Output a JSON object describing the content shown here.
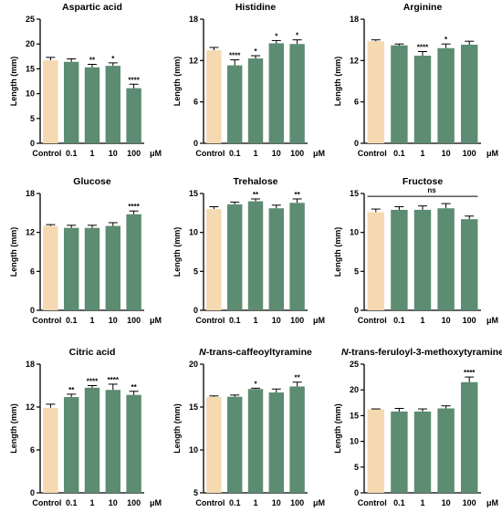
{
  "colors": {
    "control": "#F5D9B0",
    "treatment": "#5C8C71",
    "axis": "#000000"
  },
  "chart_data": [
    {
      "type": "bar",
      "title": "Aspartic acid",
      "ylabel": "Length (mm)",
      "ylim": [
        0,
        25
      ],
      "yticks": [
        "0",
        "5",
        "10",
        "15",
        "20",
        "25"
      ],
      "categories": [
        "Control",
        "0.1",
        "1",
        "10",
        "100"
      ],
      "unit_label": "μM",
      "values": [
        16.7,
        16.4,
        15.3,
        15.6,
        11.1
      ],
      "errors": [
        0.6,
        0.6,
        0.6,
        0.6,
        0.8
      ],
      "significance": [
        "",
        "",
        "**",
        "*",
        "****"
      ]
    },
    {
      "type": "bar",
      "title": "Histidine",
      "ylabel": "Length (mm)",
      "ylim": [
        0,
        18
      ],
      "yticks": [
        "0",
        "6",
        "12",
        "18"
      ],
      "categories": [
        "Control",
        "0.1",
        "1",
        "10",
        "100"
      ],
      "unit_label": "μM",
      "values": [
        13.5,
        11.3,
        12.3,
        14.5,
        14.4
      ],
      "errors": [
        0.4,
        0.8,
        0.4,
        0.4,
        0.6
      ],
      "significance": [
        "",
        "****",
        "*",
        "*",
        "*"
      ]
    },
    {
      "type": "bar",
      "title": "Arginine",
      "ylabel": "Length (mm)",
      "ylim": [
        0,
        18
      ],
      "yticks": [
        "0",
        "6",
        "12",
        "18"
      ],
      "categories": [
        "Control",
        "0.1",
        "1",
        "10",
        "100"
      ],
      "unit_label": "μM",
      "values": [
        14.8,
        14.2,
        12.7,
        13.8,
        14.3
      ],
      "errors": [
        0.2,
        0.2,
        0.6,
        0.6,
        0.5
      ],
      "significance": [
        "",
        "",
        "****",
        "*",
        ""
      ]
    },
    {
      "type": "bar",
      "title": "Glucose",
      "ylabel": "Length (mm)",
      "ylim": [
        0,
        18
      ],
      "yticks": [
        "0",
        "6",
        "12",
        "18"
      ],
      "categories": [
        "Control",
        "0.1",
        "1",
        "10",
        "100"
      ],
      "unit_label": "μM",
      "values": [
        13.0,
        12.7,
        12.7,
        13.0,
        14.8
      ],
      "errors": [
        0.2,
        0.4,
        0.4,
        0.5,
        0.5
      ],
      "significance": [
        "",
        "",
        "",
        "",
        "****"
      ]
    },
    {
      "type": "bar",
      "title": "Trehalose",
      "ylabel": "Length (mm)",
      "ylim": [
        0,
        15
      ],
      "yticks": [
        "0",
        "5",
        "10",
        "15"
      ],
      "categories": [
        "Control",
        "0.1",
        "1",
        "10",
        "100"
      ],
      "unit_label": "μM",
      "values": [
        13.0,
        13.6,
        14.0,
        13.1,
        13.8
      ],
      "errors": [
        0.3,
        0.3,
        0.3,
        0.4,
        0.5
      ],
      "significance": [
        "",
        "",
        "**",
        "",
        "**"
      ]
    },
    {
      "type": "bar",
      "title": "Fructose",
      "ylabel": "Length (mm)",
      "ylim": [
        0,
        15
      ],
      "yticks": [
        "0",
        "5",
        "10",
        "15"
      ],
      "categories": [
        "Control",
        "0.1",
        "1",
        "10",
        "100"
      ],
      "unit_label": "μM",
      "values": [
        12.6,
        12.9,
        12.9,
        13.1,
        11.7
      ],
      "errors": [
        0.4,
        0.4,
        0.5,
        0.6,
        0.4
      ],
      "significance": [
        "",
        "",
        "",
        "",
        ""
      ],
      "group_annotation": "ns"
    },
    {
      "type": "bar",
      "title": "Citric acid",
      "ylabel": "Length (mm)",
      "ylim": [
        0,
        18
      ],
      "yticks": [
        "0",
        "6",
        "12",
        "18"
      ],
      "categories": [
        "Control",
        "0.1",
        "1",
        "10",
        "100"
      ],
      "unit_label": "μM",
      "values": [
        11.9,
        13.4,
        14.7,
        14.4,
        13.7
      ],
      "errors": [
        0.5,
        0.4,
        0.3,
        0.8,
        0.5
      ],
      "significance": [
        "",
        "**",
        "****",
        "****",
        "**"
      ]
    },
    {
      "type": "bar",
      "title": "N-trans-caffeoyltyramine",
      "title_italic_prefix": "N",
      "title_rest": "-trans-caffeoyltyramine",
      "ylabel": "Length (mm)",
      "ylim": [
        5,
        20
      ],
      "yticks": [
        "5",
        "10",
        "15",
        "20"
      ],
      "categories": [
        "Control",
        "0.1",
        "1",
        "10",
        "100"
      ],
      "unit_label": "μM",
      "values": [
        16.2,
        16.2,
        17.1,
        16.7,
        17.4
      ],
      "errors": [
        0.1,
        0.2,
        0.1,
        0.4,
        0.5
      ],
      "significance": [
        "",
        "",
        "*",
        "",
        "**"
      ]
    },
    {
      "type": "bar",
      "title": "N-trans-feruloyl-3-methoxytyramine",
      "title_italic_prefix": "N",
      "title_rest": "-trans-feruloyl-3-methoxytyramine",
      "ylabel": "Length (mm)",
      "ylim": [
        0,
        25
      ],
      "yticks": [
        "0",
        "5",
        "10",
        "15",
        "20",
        "25"
      ],
      "categories": [
        "Control",
        "0.1",
        "1",
        "10",
        "100"
      ],
      "unit_label": "μM",
      "values": [
        16.2,
        15.8,
        15.8,
        16.4,
        21.5
      ],
      "errors": [
        0.1,
        0.6,
        0.5,
        0.5,
        1.0
      ],
      "significance": [
        "",
        "",
        "",
        "",
        "****"
      ]
    }
  ]
}
